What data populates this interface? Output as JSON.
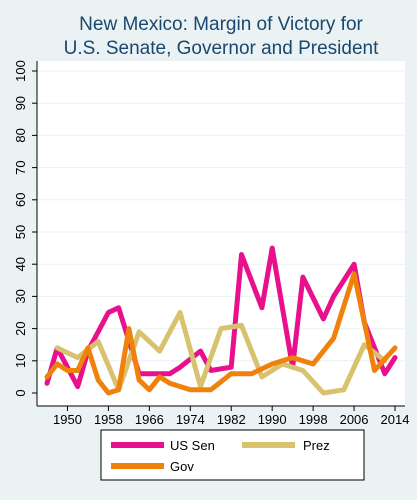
{
  "chart_data": {
    "type": "line",
    "title": [
      "New Mexico: Margin of Victory for",
      "U.S. Senate, Governor and President"
    ],
    "xlabel": "",
    "ylabel": "",
    "xlim": [
      1946,
      2014
    ],
    "ylim": [
      0,
      100
    ],
    "x_ticks": [
      1950,
      1958,
      1966,
      1974,
      1982,
      1990,
      1998,
      2006,
      2014
    ],
    "y_ticks": [
      0,
      10,
      20,
      30,
      40,
      50,
      60,
      70,
      80,
      90,
      100
    ],
    "grid": "horizontal",
    "legend_position": "bottom",
    "series": [
      {
        "name": "US Sen",
        "color": "#e8108c",
        "points": [
          [
            1946,
            3
          ],
          [
            1948,
            14
          ],
          [
            1952,
            2
          ],
          [
            1954,
            13
          ],
          [
            1958,
            25
          ],
          [
            1960,
            26.5
          ],
          [
            1964,
            6
          ],
          [
            1966,
            6
          ],
          [
            1970,
            6
          ],
          [
            1972,
            8
          ],
          [
            1976,
            13
          ],
          [
            1978,
            7
          ],
          [
            1982,
            8
          ],
          [
            1984,
            43
          ],
          [
            1988,
            26.5
          ],
          [
            1990,
            45
          ],
          [
            1994,
            8
          ],
          [
            1996,
            36
          ],
          [
            2000,
            23
          ],
          [
            2002,
            30
          ],
          [
            2006,
            40
          ],
          [
            2008,
            22
          ],
          [
            2012,
            6
          ],
          [
            2014,
            11
          ]
        ]
      },
      {
        "name": "Prez",
        "color": "#d8c26e",
        "points": [
          [
            1948,
            14
          ],
          [
            1952,
            11
          ],
          [
            1956,
            16
          ],
          [
            1960,
            1
          ],
          [
            1964,
            19
          ],
          [
            1968,
            13
          ],
          [
            1972,
            25
          ],
          [
            1976,
            2
          ],
          [
            1980,
            20
          ],
          [
            1984,
            21
          ],
          [
            1988,
            5
          ],
          [
            1992,
            9
          ],
          [
            1996,
            7
          ],
          [
            2000,
            0
          ],
          [
            2004,
            1
          ],
          [
            2008,
            15
          ],
          [
            2012,
            10
          ]
        ]
      },
      {
        "name": "Gov",
        "color": "#f0820c",
        "points": [
          [
            1946,
            5
          ],
          [
            1948,
            9
          ],
          [
            1950,
            7
          ],
          [
            1952,
            7
          ],
          [
            1954,
            14
          ],
          [
            1956,
            4
          ],
          [
            1958,
            0
          ],
          [
            1960,
            1
          ],
          [
            1962,
            20
          ],
          [
            1964,
            4
          ],
          [
            1966,
            1
          ],
          [
            1968,
            5
          ],
          [
            1970,
            3
          ],
          [
            1974,
            1
          ],
          [
            1978,
            1
          ],
          [
            1982,
            6
          ],
          [
            1986,
            6
          ],
          [
            1990,
            9
          ],
          [
            1994,
            11
          ],
          [
            1998,
            9
          ],
          [
            2002,
            17
          ],
          [
            2006,
            37
          ],
          [
            2010,
            7
          ],
          [
            2014,
            14
          ]
        ]
      }
    ],
    "background_color": "#eaf2f3",
    "plot_background_color": "#ffffff"
  }
}
